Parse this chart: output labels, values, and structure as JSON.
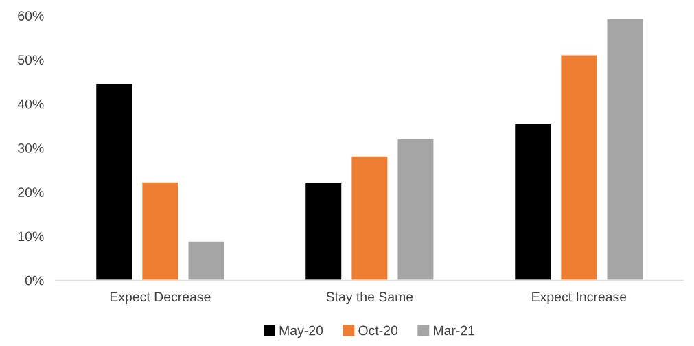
{
  "chart_data": {
    "type": "bar",
    "categories": [
      "Expect Decrease",
      "Stay the Same",
      "Expect Increase"
    ],
    "series": [
      {
        "name": "May-20",
        "color": "#000000",
        "values": [
          44.5,
          22.1,
          35.5
        ]
      },
      {
        "name": "Oct-20",
        "color": "#ed7d31",
        "values": [
          22.3,
          28.2,
          51.1
        ]
      },
      {
        "name": "Mar-21",
        "color": "#a5a5a5",
        "values": [
          8.9,
          32.1,
          59.3
        ]
      }
    ],
    "ylim": [
      0,
      60
    ],
    "yticks": [
      {
        "value": 0,
        "label": "0%"
      },
      {
        "value": 10,
        "label": "10%"
      },
      {
        "value": 20,
        "label": "20%"
      },
      {
        "value": 30,
        "label": "30%"
      },
      {
        "value": 40,
        "label": "40%"
      },
      {
        "value": 50,
        "label": "50%"
      },
      {
        "value": 60,
        "label": "60%"
      }
    ],
    "grid": false,
    "legend": "bottom"
  }
}
